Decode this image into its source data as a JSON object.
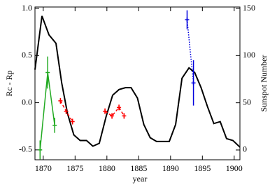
{
  "chart_data": {
    "type": "line",
    "xlabel": "year",
    "ylabel": "Rc - Rp",
    "y2label": "Sunspot Number",
    "xlim": [
      1868.7,
      1900.9
    ],
    "xticks": [
      1870,
      1875,
      1880,
      1885,
      1890,
      1895,
      1900
    ],
    "ylim": [
      -0.605,
      1.015
    ],
    "yticks": [
      -0.5,
      {
        "value": 0,
        "label": "0.0"
      },
      0.5,
      {
        "value": 1,
        "label": "1.0"
      }
    ],
    "y2lim": [
      -10.4,
      151.5
    ],
    "y2ticks": [
      0,
      50,
      100,
      150
    ],
    "series": [
      {
        "color": "#000000",
        "axis": "y2",
        "linestyle": "solid",
        "x": [
          1868.7,
          1869.8,
          1870.9,
          1872.0,
          1872.9,
          1873.8,
          1874.8,
          1875.8,
          1876.8,
          1877.8,
          1878.8,
          1879.9,
          1880.9,
          1881.9,
          1882.9,
          1883.8,
          1884.8,
          1885.8,
          1886.8,
          1887.8,
          1888.8,
          1889.8,
          1890.8,
          1891.8,
          1892.9,
          1893.8,
          1894.8,
          1895.8,
          1896.8,
          1897.8,
          1898.8,
          1899.8,
          1900.9
        ],
        "values": [
          85,
          142,
          122,
          113,
          71,
          39,
          16,
          10,
          10,
          4,
          7,
          36,
          58,
          64,
          66,
          66,
          55,
          27,
          13,
          9,
          9,
          9,
          27,
          76,
          87,
          82,
          66,
          46,
          28,
          30,
          12,
          10,
          3
        ]
      },
      {
        "color": "#22aa22",
        "axis": "y",
        "linestyle": "solid",
        "marker": "plus",
        "x": [
          1869.5,
          1870.7,
          1871.8
        ],
        "values": [
          -0.5,
          0.32,
          -0.24
        ],
        "errors": [
          0.1,
          0.17,
          0.08
        ]
      },
      {
        "color": "#ff0000",
        "axis": "y",
        "linestyle": "dashed",
        "marker": "plus",
        "x": [
          1872.7,
          1873.6,
          1874.6,
          null,
          1879.7,
          1880.8,
          1881.9,
          1882.7
        ],
        "values": [
          0.02,
          -0.09,
          -0.2,
          null,
          -0.09,
          -0.14,
          -0.05,
          -0.14
        ],
        "errors": [
          0.03,
          0.03,
          0.03,
          null,
          0.03,
          0.03,
          0.03,
          0.03
        ]
      },
      {
        "color": "#0000dd",
        "axis": "y",
        "linestyle": "dotted",
        "marker": "plus",
        "x": [
          1892.6,
          1893.6
        ],
        "values": [
          0.88,
          0.21
        ],
        "errors": [
          0.1,
          0.24
        ]
      }
    ]
  }
}
